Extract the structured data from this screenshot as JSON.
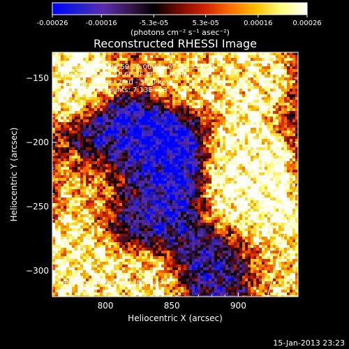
{
  "colorbar": {
    "stops": [
      "#0000ff",
      "#2020d0",
      "#5a2cae",
      "#3a1850",
      "#000000",
      "#7a0a00",
      "#d02400",
      "#ff7000",
      "#ffc000",
      "#ffff80",
      "#ffffff"
    ],
    "ticks": [
      {
        "value": -0.00026,
        "label": "-0.00026"
      },
      {
        "value": -0.00016,
        "label": "-0.00016"
      },
      {
        "value": -5.3e-05,
        "label": "-5.3e-05"
      },
      {
        "value": 5.3e-05,
        "label": "5.3e-05"
      },
      {
        "value": 0.00016,
        "label": "0.00016"
      },
      {
        "value": 0.00026,
        "label": "0.00026"
      }
    ],
    "range": [
      -0.00026,
      0.00026
    ],
    "units": "(photons cm⁻² s⁻¹ asec⁻²)"
  },
  "chart_data": {
    "type": "heatmap",
    "title": "Reconstructed RHESSI Image",
    "xlabel": "Heliocentric X (arcsec)",
    "ylabel": "Heliocentric Y (arcsec)",
    "xlim": [
      760,
      945
    ],
    "ylim": [
      -320,
      -130
    ],
    "xticks": [
      {
        "value": 800,
        "label": "800"
      },
      {
        "value": 850,
        "label": "850"
      },
      {
        "value": 900,
        "label": "900"
      }
    ],
    "yticks": [
      {
        "value": -300,
        "label": "−300"
      },
      {
        "value": -250,
        "label": "−250"
      },
      {
        "value": -200,
        "label": "−200"
      },
      {
        "value": -150,
        "label": "−150"
      }
    ],
    "grid": false,
    "hot_regions": [
      {
        "x": 905,
        "y": -215,
        "value": 0.00026
      },
      {
        "x": 912,
        "y": -255,
        "value": 0.00026
      },
      {
        "x": 775,
        "y": -150,
        "value": 0.00024
      },
      {
        "x": 905,
        "y": -150,
        "value": 0.00022
      },
      {
        "x": 775,
        "y": -290,
        "value": 0.00022
      },
      {
        "x": 825,
        "y": -310,
        "value": 0.0002
      },
      {
        "x": 795,
        "y": -230,
        "value": 0.00018
      },
      {
        "x": 860,
        "y": -140,
        "value": 0.00016
      },
      {
        "x": 930,
        "y": -300,
        "value": 0.00018
      }
    ],
    "cold_regions": [
      {
        "x": 840,
        "y": -210,
        "value": -0.00026
      },
      {
        "x": 810,
        "y": -200,
        "value": -0.00024
      },
      {
        "x": 830,
        "y": -250,
        "value": -0.00018
      },
      {
        "x": 885,
        "y": -295,
        "value": -0.00016
      }
    ],
    "limb": {
      "from": {
        "x": 945,
        "y": -232
      },
      "to": {
        "x": 922,
        "y": -320
      }
    },
    "annotations": {
      "time_range": "15-Jan-2013 06:59:20.000 to 07:02:32.000",
      "detectors": "Detectors: 3F 5F 6F 7F 8F 9F, Att 0",
      "energy_range": "Energy Range: 25.0 - 50.0 keV",
      "algorithm": "Clean    Total counts: 7.13E+03",
      "peak": "Position of Peak = [787,-137]"
    }
  },
  "footer": {
    "timestamp": "15-Jan-2013 23:23"
  }
}
